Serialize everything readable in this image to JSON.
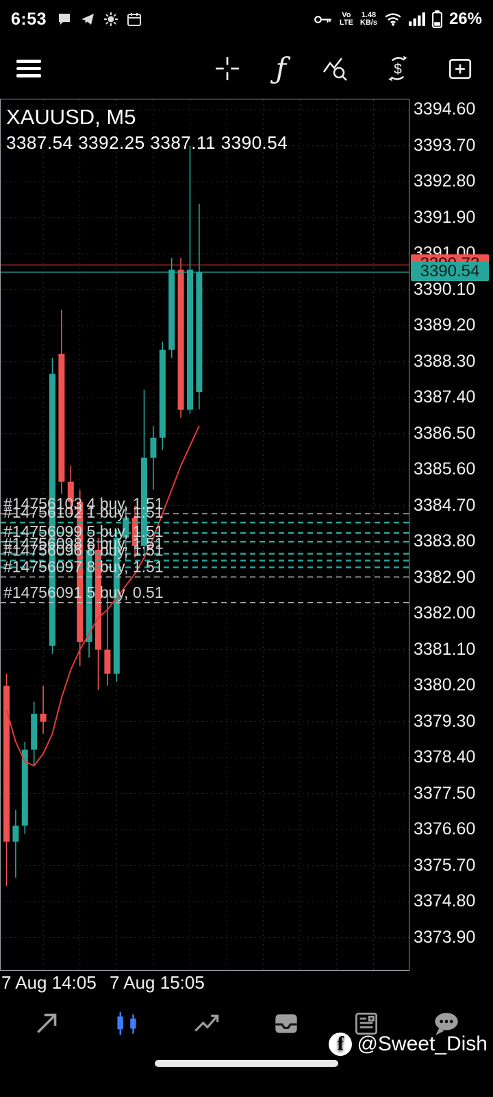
{
  "status_bar": {
    "time": "6:53",
    "volte_top": "Vo",
    "volte_bottom": "LTE",
    "speed_top": "1.48",
    "speed_bottom": "KB/s",
    "battery_percent": "26%"
  },
  "toolbar": {
    "fx_glyph": "ƒ",
    "currency_glyph": "$"
  },
  "chart": {
    "symbol_title": "XAUUSD, M5",
    "ohlc_line": "3387.54 3392.25 3387.11 3390.54",
    "ask_tag": "3390.72",
    "bid_tag": "3390.54"
  },
  "chart_data": {
    "type": "candlestick",
    "symbol": "XAUUSD",
    "timeframe": "M5",
    "title": "XAUUSD, M5",
    "ohlc_display": {
      "open": 3387.54,
      "high": 3392.25,
      "low": 3387.11,
      "close": 3390.54
    },
    "ask": 3390.72,
    "bid": 3390.54,
    "y_range": [
      3373.9,
      3394.6
    ],
    "y_axis_labels": [
      "3394.60",
      "3393.70",
      "3392.80",
      "3391.90",
      "3391.00",
      "3390.10",
      "3389.20",
      "3388.30",
      "3387.40",
      "3386.50",
      "3385.60",
      "3384.70",
      "3383.80",
      "3382.90",
      "3382.00",
      "3381.10",
      "3380.20",
      "3379.30",
      "3378.40",
      "3377.50",
      "3376.60",
      "3375.70",
      "3374.80",
      "3373.90"
    ],
    "x_axis": [
      "7 Aug 14:05",
      "7 Aug 15:05"
    ],
    "candles": [
      [
        3380.2,
        3380.5,
        3375.2,
        3376.3
      ],
      [
        3376.3,
        3377.1,
        3375.4,
        3376.7
      ],
      [
        3376.7,
        3378.8,
        3376.5,
        3378.6
      ],
      [
        3378.6,
        3379.8,
        3378.2,
        3379.5
      ],
      [
        3379.5,
        3380.2,
        3379.0,
        3379.3
      ],
      [
        3381.2,
        3388.4,
        3381.0,
        3388.0
      ],
      [
        3388.5,
        3389.6,
        3385.0,
        3385.3
      ],
      [
        3385.3,
        3385.7,
        3384.5,
        3384.8
      ],
      [
        3384.8,
        3385.1,
        3380.7,
        3381.3
      ],
      [
        3381.3,
        3383.8,
        3380.9,
        3383.6
      ],
      [
        3383.6,
        3383.9,
        3380.1,
        3381.1
      ],
      [
        3381.1,
        3382.6,
        3380.2,
        3380.5
      ],
      [
        3380.5,
        3384.1,
        3380.3,
        3383.9
      ],
      [
        3383.9,
        3384.7,
        3383.3,
        3384.4
      ],
      [
        3384.4,
        3384.7,
        3383.4,
        3383.7
      ],
      [
        3383.7,
        3387.6,
        3383.5,
        3385.9
      ],
      [
        3385.9,
        3386.7,
        3385.1,
        3386.4
      ],
      [
        3386.4,
        3388.8,
        3386.1,
        3388.6
      ],
      [
        3388.6,
        3390.9,
        3388.4,
        3390.6
      ],
      [
        3390.6,
        3390.9,
        3386.9,
        3387.1
      ],
      [
        3387.1,
        3393.7,
        3387.0,
        3390.6
      ],
      [
        3387.54,
        3392.25,
        3387.11,
        3390.54
      ]
    ],
    "ma_line": [
      3379.6,
      3378.8,
      3378.3,
      3378.2,
      3378.5,
      3379.0,
      3379.9,
      3380.6,
      3381.1,
      3381.5,
      3381.9,
      3382.1,
      3382.4,
      3382.7,
      3383.0,
      3383.4,
      3383.9,
      3384.5,
      3385.1,
      3385.7,
      3386.2,
      3386.7
    ],
    "order_lines": [
      {
        "price": 3384.5,
        "color": "#c0c0c0",
        "width": 1.5,
        "label": "#14756103 4 buy, 1.51"
      },
      {
        "price": 3384.28,
        "color": "#26a69a",
        "width": 2.5,
        "label": "#14756102 1 buy, 1.51"
      },
      {
        "price": 3384.02,
        "color": "#26a69a",
        "width": 2.5,
        "label": ""
      },
      {
        "price": 3383.8,
        "color": "#26a69a",
        "width": 2.5,
        "label": "#14756099 5 buy, 1.51"
      },
      {
        "price": 3383.5,
        "color": "#26a69a",
        "width": 2.5,
        "label": "#14756098 8 buy, 1.51"
      },
      {
        "price": 3383.33,
        "color": "#26a69a",
        "width": 2.5,
        "label": "#14756096 8 buy, 1.51"
      },
      {
        "price": 3383.16,
        "color": "#26a69a",
        "width": 2.5,
        "label": ""
      },
      {
        "price": 3382.92,
        "color": "#c0c0c0",
        "width": 1.5,
        "label": "#14756097 8 buy, 1.51"
      },
      {
        "price": 3382.28,
        "color": "#c0c0c0",
        "width": 1.5,
        "label": "#14756091 5 buy, 0.51"
      }
    ],
    "colors": {
      "bull": "#26a69a",
      "bear": "#ef5350",
      "ma": "#e53935",
      "ask_line": "#e53935",
      "bid_line": "#26a69a",
      "grid": "#2e2e2e"
    }
  },
  "bottom_nav": {
    "items": [
      {
        "id": "quotes"
      },
      {
        "id": "charts",
        "active": true
      },
      {
        "id": "trade"
      },
      {
        "id": "history"
      },
      {
        "id": "news"
      },
      {
        "id": "messages"
      }
    ],
    "active_color": "#3d7eff",
    "inactive_color": "#9e9e9e"
  },
  "watermark": {
    "logo_glyph": "f",
    "handle": "@Sweet_Dish"
  }
}
